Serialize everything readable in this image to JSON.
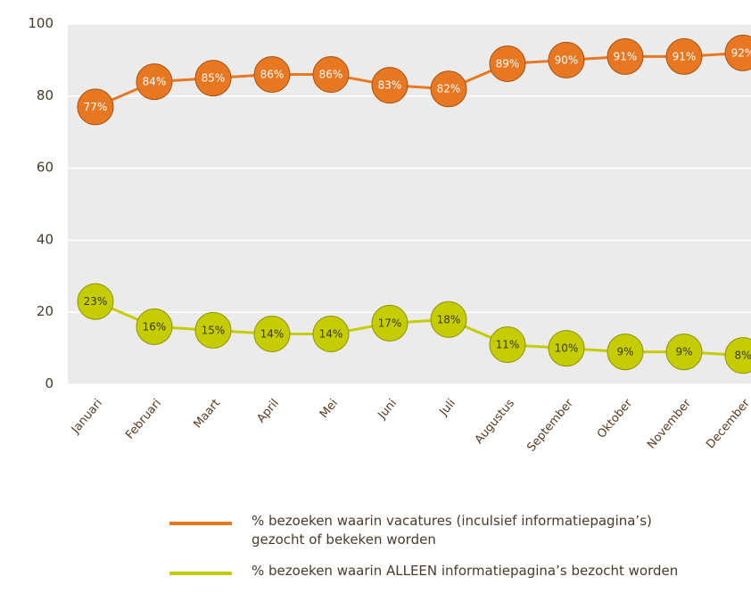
{
  "chart_data": {
    "type": "line",
    "categories": [
      "Januari",
      "Februari",
      "Maart",
      "April",
      "Mei",
      "Juni",
      "Juli",
      "Augustus",
      "September",
      "Oktober",
      "November",
      "December"
    ],
    "series": [
      {
        "name": "% bezoeken waarin vacatures (inculsief informatiepagina’s) gezocht of bekeken worden",
        "color": "#e87722",
        "values": [
          77,
          84,
          85,
          86,
          86,
          83,
          82,
          89,
          90,
          91,
          91,
          92
        ],
        "labels": [
          "77%",
          "84%",
          "85%",
          "86%",
          "86%",
          "83%",
          "82%",
          "89%",
          "90%",
          "91%",
          "91%",
          "92%"
        ]
      },
      {
        "name": "% bezoeken waarin ALLEEN informatiepagina’s bezocht worden",
        "color": "#c5cc00",
        "values": [
          23,
          16,
          15,
          14,
          14,
          17,
          18,
          11,
          10,
          9,
          9,
          8
        ],
        "labels": [
          "23%",
          "16%",
          "15%",
          "14%",
          "14%",
          "17%",
          "18%",
          "11%",
          "10%",
          "9%",
          "9%",
          "8%"
        ]
      }
    ],
    "yticks": [
      "0",
      "20",
      "40",
      "60",
      "80",
      "100"
    ],
    "ylim": [
      0,
      100
    ],
    "grid": true,
    "legend_position": "bottom",
    "plot_background": "#ebebeb"
  },
  "legend": {
    "item1_line1": "% bezoeken waarin vacatures (inculsief informatiepagina’s)",
    "item1_line2": "gezocht of bekeken worden",
    "item2": "% bezoeken waarin ALLEEN informatiepagina’s bezocht worden"
  }
}
